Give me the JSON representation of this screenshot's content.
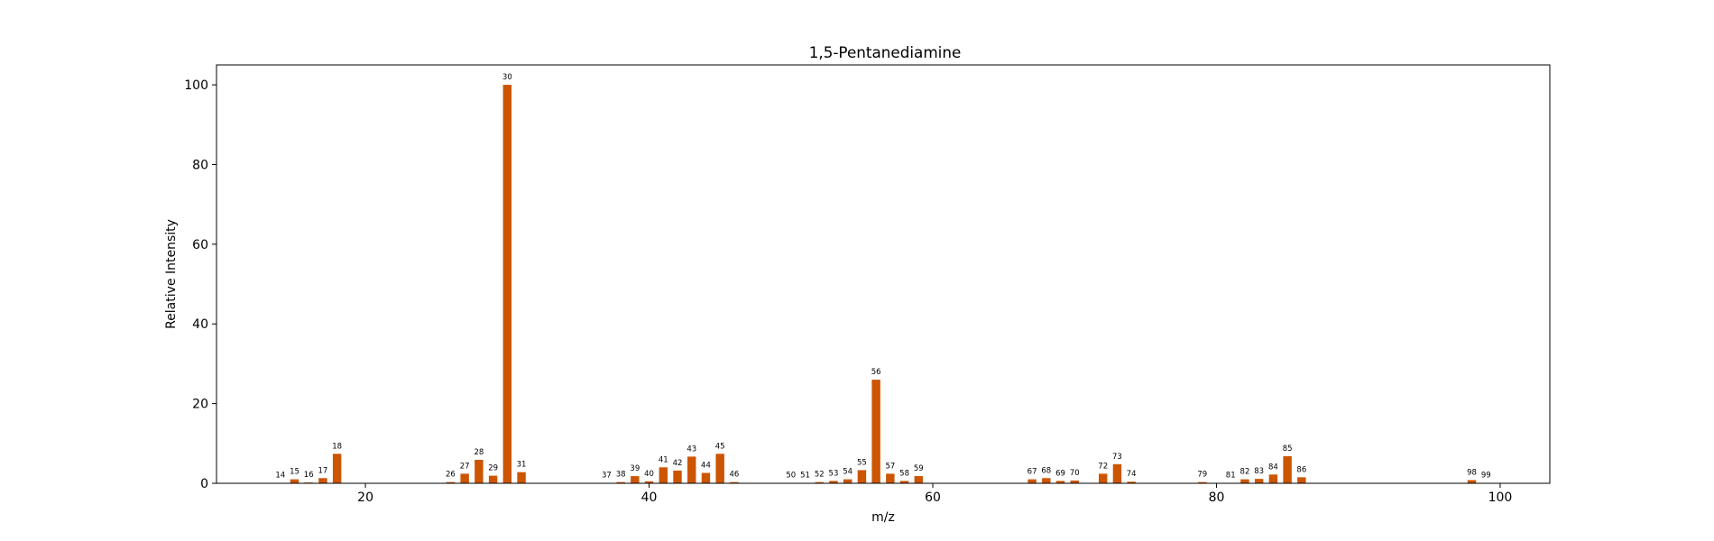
{
  "chart_data": {
    "type": "bar",
    "title": "1,5-Pentanediamine",
    "xlabel": "m/z",
    "ylabel": "Relative Intensity",
    "xlim": [
      9.5,
      103.5
    ],
    "ylim": [
      0,
      105
    ],
    "xticks": [
      20,
      40,
      60,
      80,
      100
    ],
    "yticks": [
      0,
      20,
      40,
      60,
      80,
      100
    ],
    "bar_color": "#CC5500",
    "x": [
      14,
      15,
      16,
      17,
      18,
      26,
      27,
      28,
      29,
      30,
      31,
      37,
      38,
      39,
      40,
      41,
      42,
      43,
      44,
      45,
      46,
      50,
      51,
      52,
      53,
      54,
      55,
      56,
      57,
      58,
      59,
      67,
      68,
      69,
      70,
      72,
      73,
      74,
      79,
      81,
      82,
      83,
      84,
      85,
      86,
      98,
      99
    ],
    "values": [
      0.1,
      1.0,
      0.2,
      1.3,
      7.4,
      0.3,
      2.4,
      5.9,
      1.9,
      100,
      2.8,
      0.1,
      0.3,
      1.8,
      0.5,
      4.0,
      3.2,
      6.7,
      2.6,
      7.4,
      0.3,
      0.1,
      0.1,
      0.3,
      0.6,
      1.0,
      3.3,
      26.0,
      2.4,
      0.6,
      1.8,
      1.0,
      1.3,
      0.6,
      0.7,
      2.4,
      4.8,
      0.4,
      0.3,
      0.1,
      1.0,
      1.1,
      2.2,
      6.8,
      1.5,
      0.8,
      0.1
    ]
  }
}
